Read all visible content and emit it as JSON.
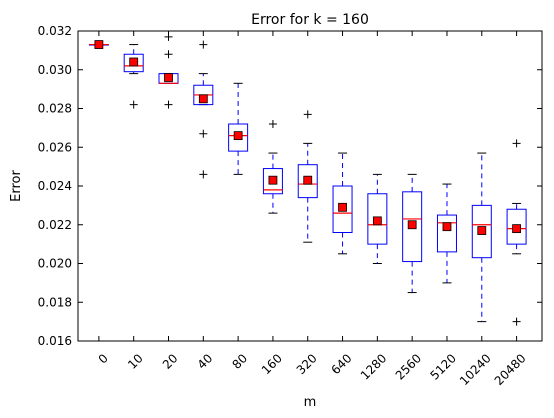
{
  "chart_data": {
    "type": "box",
    "title": "Error for k = 160",
    "xlabel": "m",
    "ylabel": "Error",
    "ylim": [
      0.016,
      0.032
    ],
    "yticks": [
      "0.016",
      "0.018",
      "0.020",
      "0.022",
      "0.024",
      "0.026",
      "0.028",
      "0.030",
      "0.032"
    ],
    "categories": [
      "0",
      "10",
      "20",
      "40",
      "80",
      "160",
      "320",
      "640",
      "1280",
      "2560",
      "5120",
      "10240",
      "20480"
    ],
    "boxes": [
      {
        "whisker_low": 0.0313,
        "q1": 0.0313,
        "median": 0.0313,
        "q3": 0.0313,
        "whisker_high": 0.0313,
        "mean": 0.0313,
        "outliers": []
      },
      {
        "whisker_low": 0.0298,
        "q1": 0.0299,
        "median": 0.0302,
        "q3": 0.0308,
        "whisker_high": 0.0313,
        "mean": 0.0304,
        "outliers": [
          0.0282
        ]
      },
      {
        "whisker_low": 0.0293,
        "q1": 0.0293,
        "median": 0.0293,
        "q3": 0.0298,
        "whisker_high": 0.0298,
        "mean": 0.0296,
        "outliers": [
          0.0308,
          0.0282,
          0.0317
        ]
      },
      {
        "whisker_low": 0.0282,
        "q1": 0.0282,
        "median": 0.0287,
        "q3": 0.0292,
        "whisker_high": 0.0298,
        "mean": 0.0285,
        "outliers": [
          0.0313,
          0.0267,
          0.0246
        ]
      },
      {
        "whisker_low": 0.0246,
        "q1": 0.0258,
        "median": 0.0266,
        "q3": 0.0272,
        "whisker_high": 0.0293,
        "mean": 0.0266,
        "outliers": []
      },
      {
        "whisker_low": 0.0226,
        "q1": 0.0236,
        "median": 0.0238,
        "q3": 0.0249,
        "whisker_high": 0.0257,
        "mean": 0.0243,
        "outliers": [
          0.0272
        ]
      },
      {
        "whisker_low": 0.0211,
        "q1": 0.0234,
        "median": 0.0241,
        "q3": 0.0251,
        "whisker_high": 0.0262,
        "mean": 0.0243,
        "outliers": [
          0.0277
        ]
      },
      {
        "whisker_low": 0.0205,
        "q1": 0.0216,
        "median": 0.0226,
        "q3": 0.024,
        "whisker_high": 0.0257,
        "mean": 0.0229,
        "outliers": []
      },
      {
        "whisker_low": 0.02,
        "q1": 0.021,
        "median": 0.022,
        "q3": 0.0236,
        "whisker_high": 0.0246,
        "mean": 0.0222,
        "outliers": []
      },
      {
        "whisker_low": 0.0185,
        "q1": 0.0201,
        "median": 0.0223,
        "q3": 0.0237,
        "whisker_high": 0.0246,
        "mean": 0.022,
        "outliers": []
      },
      {
        "whisker_low": 0.019,
        "q1": 0.0206,
        "median": 0.0221,
        "q3": 0.0225,
        "whisker_high": 0.0241,
        "mean": 0.0219,
        "outliers": []
      },
      {
        "whisker_low": 0.017,
        "q1": 0.0203,
        "median": 0.022,
        "q3": 0.023,
        "whisker_high": 0.0257,
        "mean": 0.0217,
        "outliers": []
      },
      {
        "whisker_low": 0.0205,
        "q1": 0.021,
        "median": 0.0218,
        "q3": 0.0228,
        "whisker_high": 0.0231,
        "mean": 0.0218,
        "outliers": [
          0.0262,
          0.017
        ]
      }
    ],
    "grid": false,
    "colors": {
      "box": "#0000ff",
      "median": "#ff0000",
      "mean_marker": "#ff0000",
      "outlier": "#000000"
    }
  }
}
